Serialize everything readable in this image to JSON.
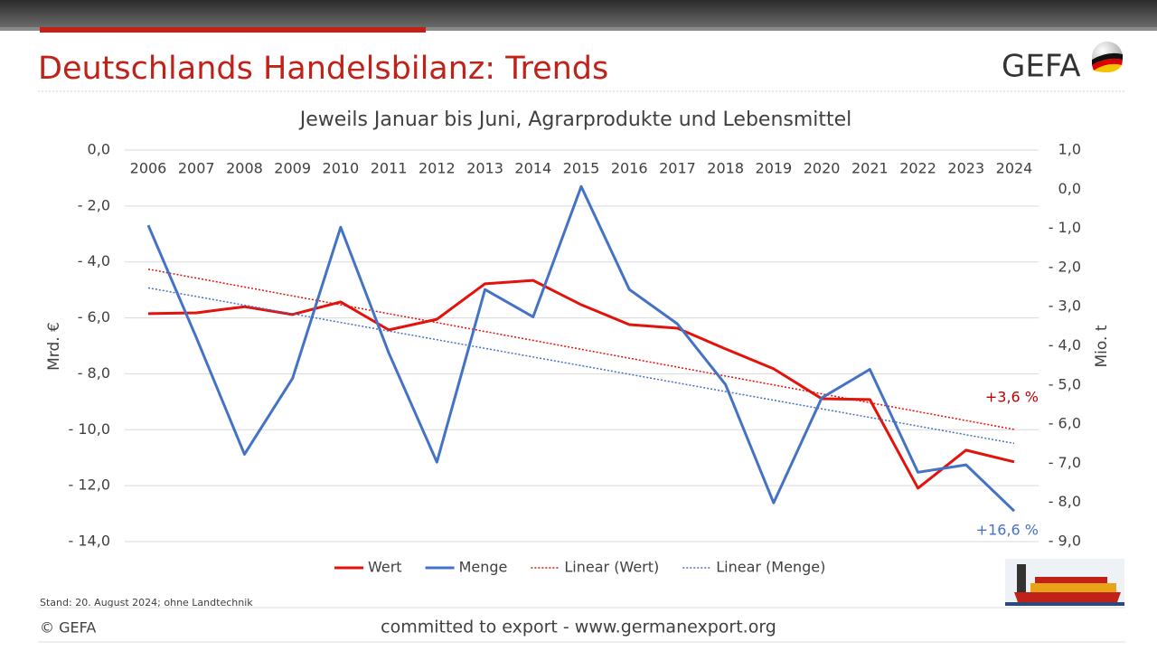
{
  "slide": {
    "title": "Deutschlands Handelsbilanz: Trends",
    "logo": "GEFA",
    "note": "Stand: 20. August 2024; ohne Landtechnik",
    "copyright": "© GEFA",
    "footer": "committed to export - www.germanexport.org"
  },
  "chart_data": {
    "type": "line",
    "title": "Jeweils Januar bis Juni, Agrarprodukte und Lebensmittel",
    "ylabel": "Mrd. €",
    "y2label": "Mio. t",
    "categories": [
      "2006",
      "2007",
      "2008",
      "2009",
      "2010",
      "2011",
      "2012",
      "2013",
      "2014",
      "2015",
      "2016",
      "2017",
      "2018",
      "2019",
      "2020",
      "2021",
      "2022",
      "2023",
      "2024"
    ],
    "series": [
      {
        "name": "Wert",
        "color": "#e3120b",
        "trendline": "Linear (Wert)",
        "values": [
          -5.85,
          -5.82,
          -5.6,
          -5.88,
          -5.43,
          -6.43,
          -6.05,
          -4.78,
          -4.66,
          -5.53,
          -6.24,
          -6.37,
          -7.11,
          -7.82,
          -8.89,
          -8.92,
          -12.09,
          -10.73,
          -11.15
        ]
      },
      {
        "name": "Menge",
        "color": "#4472c4",
        "axis": "y2",
        "trendline": "Linear (Menge)",
        "values": [
          -0.92,
          -3.79,
          -6.77,
          -4.83,
          -0.97,
          -4.18,
          -6.97,
          -2.56,
          -3.26,
          0.07,
          -2.56,
          -3.44,
          -4.99,
          -8.01,
          -5.33,
          -4.6,
          -7.23,
          -7.04,
          -8.22
        ]
      }
    ],
    "ylim": [
      0,
      -14
    ],
    "yticks": [
      {
        "value": 0,
        "label": "0,0"
      },
      {
        "value": -2,
        "label": "- 2,0"
      },
      {
        "value": -4,
        "label": "- 4,0"
      },
      {
        "value": -6,
        "label": "- 6,0"
      },
      {
        "value": -8,
        "label": "- 8,0"
      },
      {
        "value": -10,
        "label": "- 10,0"
      },
      {
        "value": -12,
        "label": "- 12,0"
      },
      {
        "value": -14,
        "label": "- 14,0"
      }
    ],
    "y2lim": [
      1,
      -9
    ],
    "y2ticks": [
      {
        "value": 1,
        "label": "1,0"
      },
      {
        "value": 0,
        "label": "0,0"
      },
      {
        "value": -1,
        "label": "- 1,0"
      },
      {
        "value": -2,
        "label": "- 2,0"
      },
      {
        "value": -3,
        "label": "- 3,0"
      },
      {
        "value": -4,
        "label": "- 4,0"
      },
      {
        "value": -5,
        "label": "- 5,0"
      },
      {
        "value": -6,
        "label": "- 6,0"
      },
      {
        "value": -7,
        "label": "- 7,0"
      },
      {
        "value": -8,
        "label": "- 8,0"
      },
      {
        "value": -9,
        "label": "- 9,0"
      }
    ],
    "grid": true,
    "annotations": [
      {
        "text": "+3,6 %",
        "color": "#c00000"
      },
      {
        "text": "+16,6 %",
        "color": "#4472c4"
      }
    ]
  }
}
